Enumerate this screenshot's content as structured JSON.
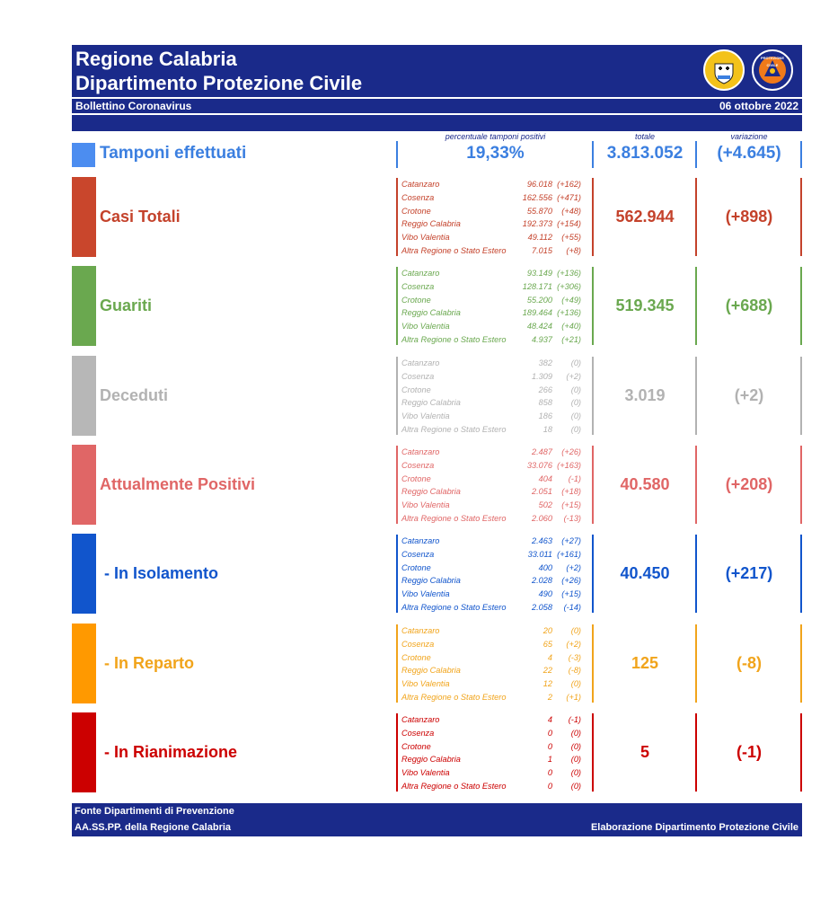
{
  "header": {
    "title_line1": "Regione Calabria",
    "title_line2": "Dipartimento Protezione Civile",
    "subtitle": "Bollettino Coronavirus",
    "date": "06 ottobre 2022",
    "logo_badge_text": "PROTEZIONE CIVILE"
  },
  "columns": {
    "pct_label": "percentuale tamponi positivi",
    "total_label": "totale",
    "var_label": "variazione"
  },
  "tamponi": {
    "label": "Tamponi effettuati",
    "pct": "19,33%",
    "total": "3.813.052",
    "var": "(+4.645)",
    "color": "#3b7fe0"
  },
  "sections": [
    {
      "id": "casi-totali",
      "label": "Casi Totali",
      "color": "#c4422b",
      "box_color": "#c9462c",
      "total": "562.944",
      "var": "(+898)",
      "rows": [
        {
          "p": "Catanzaro",
          "n": "96.018",
          "d": "(+162)"
        },
        {
          "p": "Cosenza",
          "n": "162.556",
          "d": "(+471)"
        },
        {
          "p": "Crotone",
          "n": "55.870",
          "d": "(+48)"
        },
        {
          "p": "Reggio Calabria",
          "n": "192.373",
          "d": "(+154)"
        },
        {
          "p": "Vibo Valentia",
          "n": "49.112",
          "d": "(+55)"
        },
        {
          "p": "Altra Regione o Stato Estero",
          "n": "7.015",
          "d": "(+8)"
        }
      ]
    },
    {
      "id": "guariti",
      "label": "Guariti",
      "color": "#6aa84f",
      "box_color": "#6aa84f",
      "total": "519.345",
      "var": "(+688)",
      "rows": [
        {
          "p": "Catanzaro",
          "n": "93.149",
          "d": "(+136)"
        },
        {
          "p": "Cosenza",
          "n": "128.171",
          "d": "(+306)"
        },
        {
          "p": "Crotone",
          "n": "55.200",
          "d": "(+49)"
        },
        {
          "p": "Reggio Calabria",
          "n": "189.464",
          "d": "(+136)"
        },
        {
          "p": "Vibo Valentia",
          "n": "48.424",
          "d": "(+40)"
        },
        {
          "p": "Altra Regione o Stato Estero",
          "n": "4.937",
          "d": "(+21)"
        }
      ]
    },
    {
      "id": "deceduti",
      "label": "Deceduti",
      "color": "#b2b2b2",
      "box_color": "#b7b7b7",
      "total": "3.019",
      "var": "(+2)",
      "rows": [
        {
          "p": "Catanzaro",
          "n": "382",
          "d": "(0)"
        },
        {
          "p": "Cosenza",
          "n": "1.309",
          "d": "(+2)"
        },
        {
          "p": "Crotone",
          "n": "266",
          "d": "(0)"
        },
        {
          "p": "Reggio Calabria",
          "n": "858",
          "d": "(0)"
        },
        {
          "p": "Vibo Valentia",
          "n": "186",
          "d": "(0)"
        },
        {
          "p": "Altra Regione o Stato Estero",
          "n": "18",
          "d": "(0)"
        }
      ]
    },
    {
      "id": "attualmente-positivi",
      "label": "Attualmente Positivi",
      "color": "#e06666",
      "box_color": "#e06666",
      "total": "40.580",
      "var": "(+208)",
      "rows": [
        {
          "p": "Catanzaro",
          "n": "2.487",
          "d": "(+26)"
        },
        {
          "p": "Cosenza",
          "n": "33.076",
          "d": "(+163)"
        },
        {
          "p": "Crotone",
          "n": "404",
          "d": "(-1)"
        },
        {
          "p": "Reggio Calabria",
          "n": "2.051",
          "d": "(+18)"
        },
        {
          "p": "Vibo Valentia",
          "n": "502",
          "d": "(+15)"
        },
        {
          "p": "Altra Regione o Stato Estero",
          "n": "2.060",
          "d": "(-13)"
        }
      ]
    },
    {
      "id": "in-isolamento",
      "label": "- In Isolamento",
      "color": "#1155cc",
      "box_color": "#1155cc",
      "total": "40.450",
      "var": "(+217)",
      "rows": [
        {
          "p": "Catanzaro",
          "n": "2.463",
          "d": "(+27)"
        },
        {
          "p": "Cosenza",
          "n": "33.011",
          "d": "(+161)"
        },
        {
          "p": "Crotone",
          "n": "400",
          "d": "(+2)"
        },
        {
          "p": "Reggio Calabria",
          "n": "2.028",
          "d": "(+26)"
        },
        {
          "p": "Vibo Valentia",
          "n": "490",
          "d": "(+15)"
        },
        {
          "p": "Altra Regione o Stato Estero",
          "n": "2.058",
          "d": "(-14)"
        }
      ]
    },
    {
      "id": "in-reparto",
      "label": "- In Reparto",
      "color": "#f1a41b",
      "box_color": "#ff9900",
      "total": "125",
      "var": "(-8)",
      "rows": [
        {
          "p": "Catanzaro",
          "n": "20",
          "d": "(0)"
        },
        {
          "p": "Cosenza",
          "n": "65",
          "d": "(+2)"
        },
        {
          "p": "Crotone",
          "n": "4",
          "d": "(-3)"
        },
        {
          "p": "Reggio Calabria",
          "n": "22",
          "d": "(-8)"
        },
        {
          "p": "Vibo Valentia",
          "n": "12",
          "d": "(0)"
        },
        {
          "p": "Altra Regione o Stato Estero",
          "n": "2",
          "d": "(+1)"
        }
      ]
    },
    {
      "id": "in-rianimazione",
      "label": "- In Rianimazione",
      "color": "#cc0000",
      "box_color": "#cc0000",
      "total": "5",
      "var": "(-1)",
      "rows": [
        {
          "p": "Catanzaro",
          "n": "4",
          "d": "(-1)"
        },
        {
          "p": "Cosenza",
          "n": "0",
          "d": "(0)"
        },
        {
          "p": "Crotone",
          "n": "0",
          "d": "(0)"
        },
        {
          "p": "Reggio Calabria",
          "n": "1",
          "d": "(0)"
        },
        {
          "p": "Vibo Valentia",
          "n": "0",
          "d": "(0)"
        },
        {
          "p": "Altra Regione o Stato Estero",
          "n": "0",
          "d": "(0)"
        }
      ]
    }
  ],
  "footer": {
    "line1": "Fonte Dipartimenti di Prevenzione",
    "line2": "AA.SS.PP.  della Regione Calabria",
    "credit": "Elaborazione Dipartimento Protezione Civile"
  }
}
